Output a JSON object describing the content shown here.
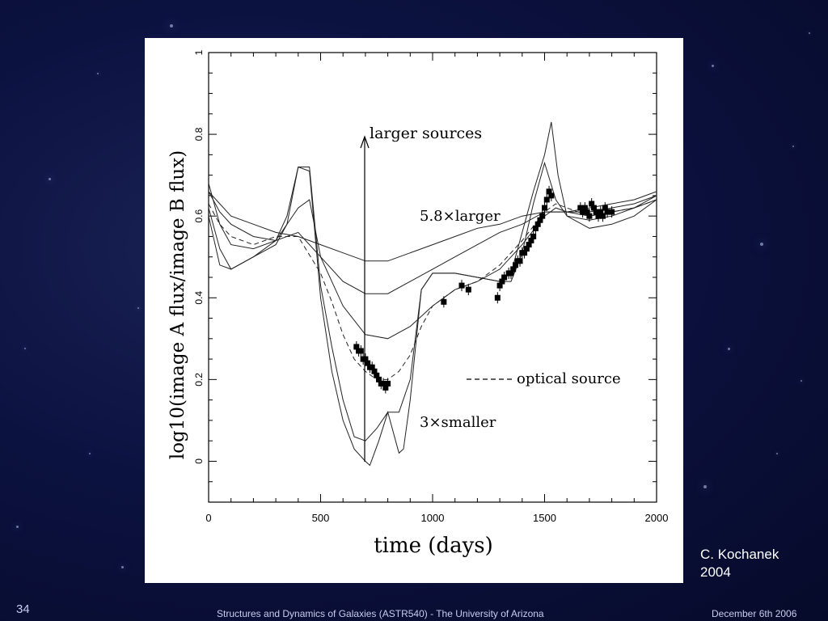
{
  "slide": {
    "number": "34",
    "footer_title": "Structures and Dynamics of Galaxies (ASTR540) - The University of Arizona",
    "date": "December 6th 2006",
    "credit_line1": "C. Kochanek",
    "credit_line2": "2004",
    "background_color": "#0c1240"
  },
  "chart_data": {
    "type": "line",
    "xlabel": "time (days)",
    "ylabel": "log10(image A flux/image B flux)",
    "xlim": [
      0,
      2000
    ],
    "ylim": [
      -0.1,
      1.0
    ],
    "x_ticks": [
      "0",
      "500",
      "1000",
      "1500",
      "2000"
    ],
    "y_ticks": [
      "0",
      "0.2",
      "0.4",
      "0.6",
      "0.8",
      "1"
    ],
    "grid": false,
    "annotations": {
      "larger": "larger sources",
      "larger58": "5.8×larger",
      "smaller": "3×smaller",
      "optical": "optical source"
    },
    "series": [
      {
        "style": "solid",
        "x": [
          0,
          50,
          100,
          200,
          300,
          400,
          500,
          600,
          700,
          800,
          900,
          1000,
          1100,
          1200,
          1300,
          1400,
          1500,
          1600,
          1700,
          1800,
          1900,
          2000
        ],
        "y": [
          0.66,
          0.63,
          0.6,
          0.58,
          0.56,
          0.55,
          0.53,
          0.51,
          0.49,
          0.49,
          0.51,
          0.53,
          0.55,
          0.57,
          0.58,
          0.6,
          0.61,
          0.61,
          0.62,
          0.63,
          0.64,
          0.66
        ]
      },
      {
        "style": "solid",
        "x": [
          0,
          50,
          100,
          200,
          300,
          400,
          500,
          600,
          700,
          800,
          900,
          1000,
          1100,
          1200,
          1300,
          1400,
          1500,
          1600,
          1700,
          1800,
          1900,
          2000
        ],
        "y": [
          0.66,
          0.61,
          0.58,
          0.55,
          0.54,
          0.56,
          0.5,
          0.44,
          0.41,
          0.41,
          0.44,
          0.47,
          0.5,
          0.53,
          0.56,
          0.58,
          0.61,
          0.61,
          0.61,
          0.62,
          0.63,
          0.65
        ]
      },
      {
        "style": "solid",
        "x": [
          0,
          50,
          100,
          200,
          300,
          400,
          450,
          500,
          600,
          700,
          800,
          900,
          1000,
          1100,
          1200,
          1300,
          1400,
          1500,
          1550,
          1600,
          1700,
          1800,
          1900,
          2000
        ],
        "y": [
          0.68,
          0.58,
          0.53,
          0.52,
          0.54,
          0.62,
          0.64,
          0.5,
          0.38,
          0.31,
          0.3,
          0.33,
          0.38,
          0.42,
          0.44,
          0.47,
          0.53,
          0.6,
          0.62,
          0.61,
          0.6,
          0.61,
          0.62,
          0.65
        ]
      },
      {
        "style": "dashed",
        "x": [
          0,
          50,
          100,
          200,
          300,
          400,
          500,
          550,
          600,
          650,
          700,
          750,
          800,
          850,
          900,
          950,
          1000,
          1100,
          1200,
          1300,
          1400,
          1500,
          1550,
          1600,
          1700,
          1800,
          1900,
          2000
        ],
        "y": [
          0.63,
          0.58,
          0.55,
          0.53,
          0.55,
          0.55,
          0.46,
          0.39,
          0.31,
          0.25,
          0.22,
          0.2,
          0.2,
          0.22,
          0.26,
          0.33,
          0.38,
          0.42,
          0.44,
          0.48,
          0.54,
          0.61,
          0.63,
          0.62,
          0.6,
          0.61,
          0.62,
          0.64
        ]
      },
      {
        "style": "solid",
        "x": [
          0,
          50,
          100,
          200,
          300,
          350,
          400,
          450,
          500,
          550,
          600,
          650,
          700,
          750,
          800,
          850,
          900,
          950,
          1000,
          1100,
          1200,
          1300,
          1350,
          1400,
          1450,
          1500,
          1550,
          1600,
          1700,
          1800,
          1900,
          2000
        ],
        "y": [
          0.62,
          0.52,
          0.47,
          0.5,
          0.53,
          0.58,
          0.72,
          0.72,
          0.43,
          0.28,
          0.15,
          0.06,
          0.05,
          0.08,
          0.12,
          0.12,
          0.2,
          0.42,
          0.46,
          0.46,
          0.45,
          0.44,
          0.44,
          0.51,
          0.63,
          0.73,
          0.64,
          0.6,
          0.59,
          0.6,
          0.62,
          0.64
        ]
      },
      {
        "style": "solid",
        "x": [
          0,
          50,
          100,
          200,
          300,
          350,
          400,
          450,
          500,
          550,
          600,
          650,
          700,
          720,
          760,
          800,
          850,
          870,
          900,
          950,
          1000,
          1100,
          1200,
          1300,
          1350,
          1400,
          1450,
          1500,
          1530,
          1560,
          1600,
          1700,
          1800,
          1900,
          2000
        ],
        "y": [
          0.6,
          0.48,
          0.47,
          0.5,
          0.54,
          0.6,
          0.72,
          0.71,
          0.4,
          0.22,
          0.1,
          0.03,
          0.0,
          -0.01,
          0.05,
          0.12,
          0.02,
          0.03,
          0.15,
          0.42,
          0.46,
          0.46,
          0.45,
          0.44,
          0.46,
          0.56,
          0.66,
          0.75,
          0.83,
          0.7,
          0.6,
          0.57,
          0.58,
          0.6,
          0.64
        ]
      }
    ],
    "data_points": {
      "x": [
        660,
        670,
        680,
        690,
        700,
        710,
        720,
        730,
        740,
        750,
        760,
        770,
        780,
        790,
        800,
        1050,
        1130,
        1160,
        1290,
        1300,
        1310,
        1320,
        1340,
        1350,
        1360,
        1370,
        1380,
        1390,
        1400,
        1410,
        1420,
        1430,
        1440,
        1450,
        1460,
        1470,
        1480,
        1490,
        1500,
        1510,
        1520,
        1530,
        1660,
        1670,
        1680,
        1690,
        1700,
        1710,
        1720,
        1730,
        1740,
        1750,
        1760,
        1770,
        1780,
        1800
      ],
      "y": [
        0.28,
        0.27,
        0.27,
        0.25,
        0.25,
        0.24,
        0.23,
        0.23,
        0.22,
        0.21,
        0.2,
        0.19,
        0.19,
        0.18,
        0.19,
        0.39,
        0.43,
        0.42,
        0.4,
        0.43,
        0.44,
        0.45,
        0.46,
        0.46,
        0.47,
        0.48,
        0.49,
        0.49,
        0.51,
        0.51,
        0.52,
        0.53,
        0.54,
        0.55,
        0.57,
        0.58,
        0.59,
        0.6,
        0.62,
        0.64,
        0.66,
        0.65,
        0.62,
        0.61,
        0.62,
        0.61,
        0.6,
        0.63,
        0.62,
        0.61,
        0.6,
        0.61,
        0.6,
        0.62,
        0.61,
        0.61
      ]
    }
  }
}
